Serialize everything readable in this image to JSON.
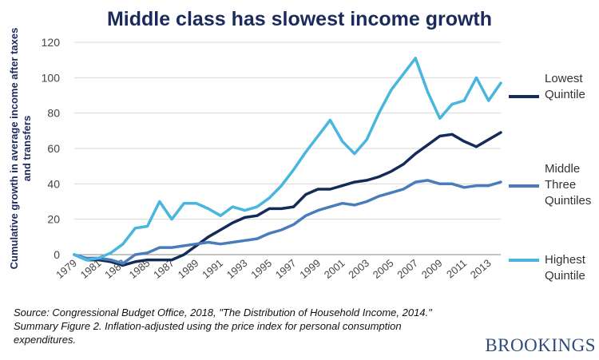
{
  "title": "Middle class has slowest income growth",
  "source": "Source: Congressional Budget Office, 2018, \"The Distribution of Household Income, 2014.\" Summary Figure 2. Inflation-adjusted using the price index for personal consumption expenditures.",
  "brand": "BROOKINGS",
  "colors": {
    "title": "#1a2a5c",
    "brand": "#2f4b7c"
  },
  "chart_data": {
    "type": "line",
    "title": "Middle class has slowest income growth",
    "ylabel": "Cumulative growth in average income after taxes and transfers",
    "xlabel": "",
    "ylim": [
      0,
      120
    ],
    "ylim_plot": [
      -10,
      120
    ],
    "yticks": [
      0,
      20,
      40,
      60,
      80,
      100,
      120
    ],
    "x": [
      1979,
      1980,
      1981,
      1982,
      1983,
      1984,
      1985,
      1986,
      1987,
      1988,
      1989,
      1990,
      1991,
      1992,
      1993,
      1994,
      1995,
      1996,
      1997,
      1998,
      1999,
      2000,
      2001,
      2002,
      2003,
      2004,
      2005,
      2006,
      2007,
      2008,
      2009,
      2010,
      2011,
      2012,
      2013,
      2014
    ],
    "xticks": [
      "1979",
      "1981",
      "1983",
      "1985",
      "1987",
      "1989",
      "1991",
      "1993",
      "1995",
      "1997",
      "1999",
      "2001",
      "2003",
      "2005",
      "2007",
      "2009",
      "2011",
      "2013"
    ],
    "grid": true,
    "legend": "right",
    "series": [
      {
        "name": "Lowest Quintile",
        "color": "#142b5a",
        "values": [
          0,
          -3,
          -3,
          -4,
          -6,
          -4,
          -3,
          -3,
          -3,
          0,
          5,
          10,
          14,
          18,
          21,
          22,
          26,
          26,
          27,
          34,
          37,
          37,
          39,
          41,
          42,
          44,
          47,
          51,
          57,
          62,
          67,
          68,
          64,
          61,
          65,
          69
        ]
      },
      {
        "name": "Middle Three Quintiles",
        "color": "#4a7cbd",
        "values": [
          0,
          -2,
          -2,
          -3,
          -5,
          0,
          1,
          4,
          4,
          5,
          6,
          7,
          6,
          7,
          8,
          9,
          12,
          14,
          17,
          22,
          25,
          27,
          29,
          28,
          30,
          33,
          35,
          37,
          41,
          42,
          40,
          40,
          38,
          39,
          39,
          41
        ]
      },
      {
        "name": "Highest Quintile",
        "color": "#48b6dd",
        "values": [
          0,
          -3,
          -2,
          1,
          6,
          15,
          16,
          30,
          20,
          29,
          29,
          26,
          22,
          27,
          25,
          27,
          32,
          39,
          48,
          58,
          67,
          76,
          64,
          57,
          65,
          80,
          93,
          102,
          111,
          92,
          77,
          85,
          87,
          100,
          87,
          97
        ]
      }
    ],
    "legend_labels": [
      {
        "series": 0,
        "lines": [
          "Lowest",
          "Quintile"
        ]
      },
      {
        "series": 1,
        "lines": [
          "Middle",
          "Three",
          "Quintiles"
        ]
      },
      {
        "series": 2,
        "lines": [
          "Highest",
          "Quintile"
        ]
      }
    ]
  }
}
